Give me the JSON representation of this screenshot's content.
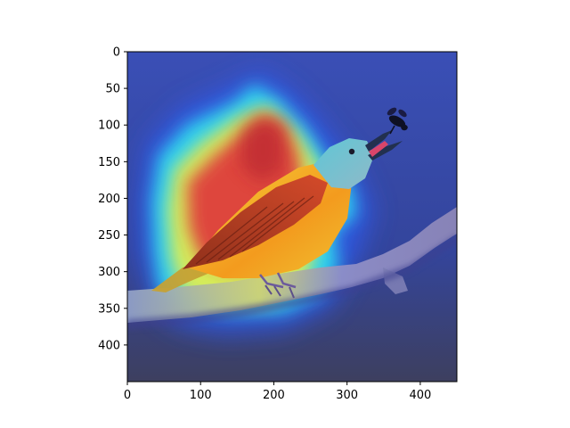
{
  "image": {
    "description_name": "bird-on-branch-with-attention-heatmap-overlay",
    "subject": "bird catching an insect",
    "colormap": "jet"
  },
  "axes": {
    "x_ticks": [
      "0",
      "100",
      "200",
      "300",
      "400"
    ],
    "y_ticks": [
      "0",
      "50",
      "100",
      "150",
      "200",
      "250",
      "300",
      "350",
      "400"
    ],
    "xlim": [
      0,
      450
    ],
    "ylim": [
      450,
      0
    ]
  },
  "colors": {
    "heat_low": "#1f2fd0",
    "heat_mid": "#27e0f0",
    "heat_yellow": "#f5e63a",
    "heat_high": "#e0343a",
    "axis": "#000000",
    "background": "#ffffff"
  }
}
